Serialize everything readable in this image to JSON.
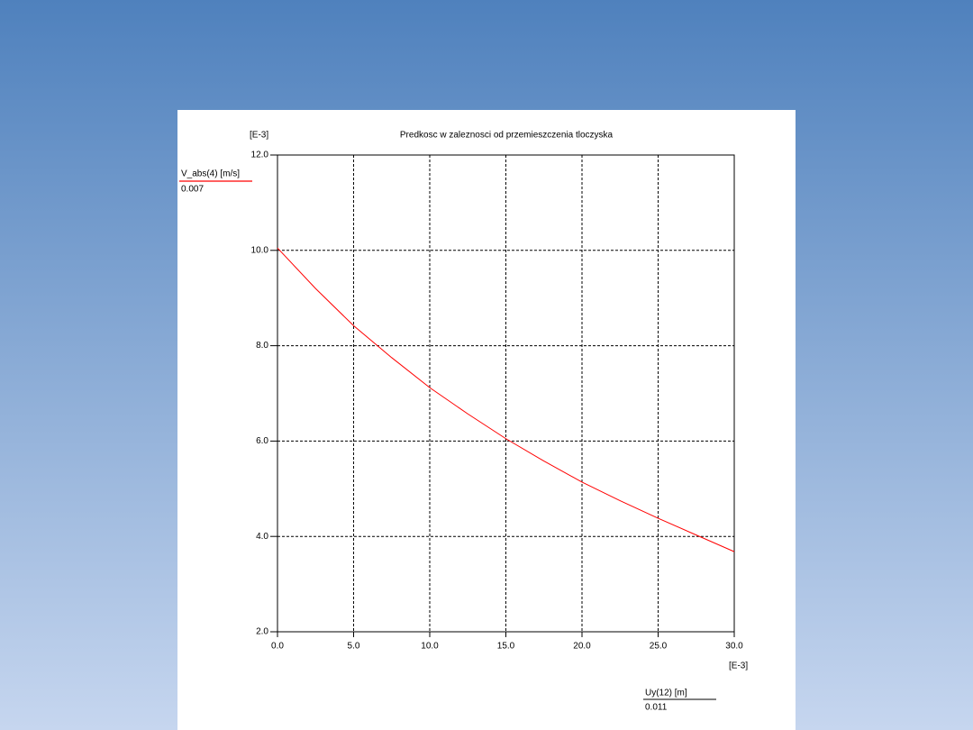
{
  "chart_data": {
    "type": "line",
    "title": "Predkosc w zaleznosci od przemieszczenia tloczyska",
    "y_unit": "[E-3]",
    "x_unit": "[E-3]",
    "xlabel": "Uy(12) [m]",
    "xlabel_value": "0.011",
    "ylabel_value": "0.007",
    "x": [
      0,
      2.5,
      5,
      7.5,
      10,
      12.5,
      15,
      17.5,
      20,
      22.5,
      25,
      27.5,
      30
    ],
    "series": [
      {
        "name": "V_abs(4) [m/s]",
        "color": "#ff0000",
        "values": [
          10.05,
          9.2,
          8.42,
          7.75,
          7.12,
          6.57,
          6.05,
          5.58,
          5.14,
          4.75,
          4.38,
          4.03,
          3.68
        ]
      }
    ],
    "xlim": [
      0,
      30
    ],
    "xticks": [
      {
        "value": 0,
        "label": "0.0"
      },
      {
        "value": 5,
        "label": "5.0"
      },
      {
        "value": 10,
        "label": "10.0"
      },
      {
        "value": 15,
        "label": "15.0"
      },
      {
        "value": 20,
        "label": "20.0"
      },
      {
        "value": 25,
        "label": "25.0"
      },
      {
        "value": 30,
        "label": "30.0"
      }
    ],
    "ylim": [
      2,
      12
    ],
    "yticks": [
      {
        "value": 2,
        "label": "2.0"
      },
      {
        "value": 4,
        "label": "4.0"
      },
      {
        "value": 6,
        "label": "6.0"
      },
      {
        "value": 8,
        "label": "8.0"
      },
      {
        "value": 10,
        "label": "10.0"
      },
      {
        "value": 12,
        "label": "12.0"
      }
    ],
    "grid": true
  }
}
